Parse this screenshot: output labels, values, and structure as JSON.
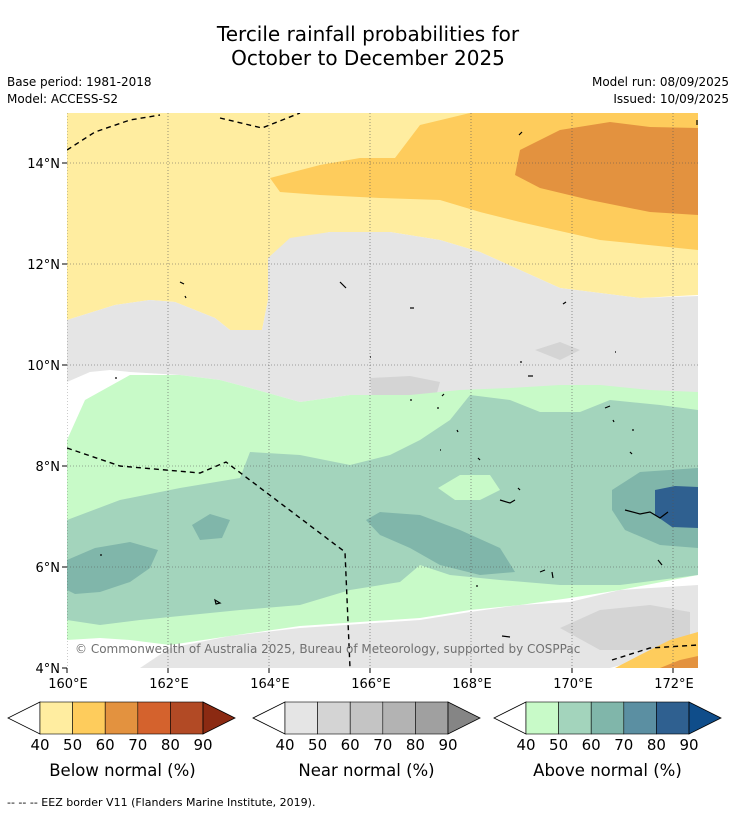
{
  "header": {
    "title_line1": "Tercile rainfall probabilities for",
    "title_line2": "October to December 2025",
    "base_period": "Base period: 1981-2018",
    "model": "Model: ACCESS-S2",
    "model_run": "Model run: 08/09/2025",
    "issued": "Issued: 10/09/2025"
  },
  "map": {
    "lon_range": [
      160,
      172.5
    ],
    "lat_range": [
      4,
      15
    ],
    "x_tick_labels": [
      "160°E",
      "162°E",
      "164°E",
      "166°E",
      "168°E",
      "170°E",
      "172°E"
    ],
    "y_tick_labels": [
      "4°N",
      "6°N",
      "8°N",
      "10°N",
      "12°N",
      "14°N"
    ],
    "copyright": "© Commonwealth of Australia 2025, Bureau of Meteorology, supported by COSPPac",
    "eez_border_style": "dashed"
  },
  "colorbars": [
    {
      "title": "Below normal (%)",
      "ticks": [
        "40",
        "50",
        "60",
        "70",
        "80",
        "90"
      ],
      "colors": [
        "#ffffff",
        "#ffeda0",
        "#fecc5c",
        "#e3923f",
        "#d4622d",
        "#b24a25",
        "#8b2a12"
      ]
    },
    {
      "title": "Near normal (%)",
      "ticks": [
        "40",
        "50",
        "60",
        "70",
        "80",
        "90"
      ],
      "colors": [
        "#ffffff",
        "#e5e5e5",
        "#d4d4d4",
        "#c4c4c4",
        "#b3b3b3",
        "#a0a0a0",
        "#858585"
      ]
    },
    {
      "title": "Above normal (%)",
      "ticks": [
        "40",
        "50",
        "60",
        "70",
        "80",
        "90"
      ],
      "colors": [
        "#ffffff",
        "#c8fac8",
        "#a3d4bc",
        "#80b6aa",
        "#5b8fa2",
        "#2f6090",
        "#0f4d8a"
      ]
    }
  ],
  "footer": {
    "legend_line": "--  --  -- EEZ border V11 (Flanders Marine Institute, 2019)."
  }
}
